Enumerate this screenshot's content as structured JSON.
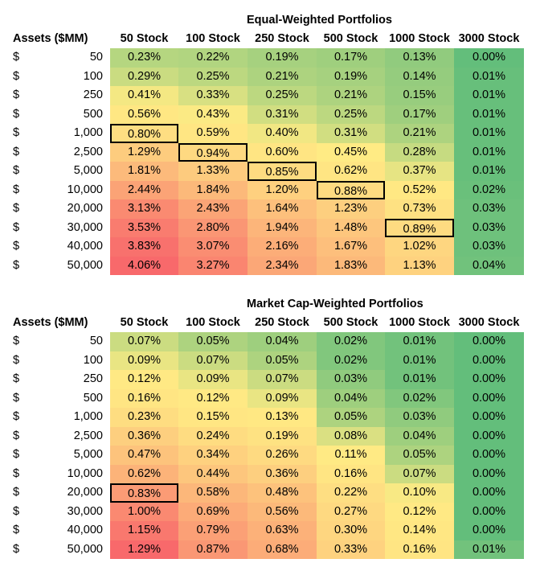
{
  "columns": [
    "50 Stock",
    "100 Stock",
    "250 Stock",
    "500 Stock",
    "1000 Stock",
    "3000 Stock"
  ],
  "assets_header": "Assets ($MM)",
  "currency_symbol": "$",
  "tables": [
    {
      "title": "Equal-Weighted Portfolios",
      "rows": [
        {
          "assets": "50",
          "values": [
            "0.23%",
            "0.22%",
            "0.19%",
            "0.17%",
            "0.13%",
            "0.00%"
          ]
        },
        {
          "assets": "100",
          "values": [
            "0.29%",
            "0.25%",
            "0.21%",
            "0.19%",
            "0.14%",
            "0.01%"
          ]
        },
        {
          "assets": "250",
          "values": [
            "0.41%",
            "0.33%",
            "0.25%",
            "0.21%",
            "0.15%",
            "0.01%"
          ]
        },
        {
          "assets": "500",
          "values": [
            "0.56%",
            "0.43%",
            "0.31%",
            "0.25%",
            "0.17%",
            "0.01%"
          ]
        },
        {
          "assets": "1,000",
          "values": [
            "0.80%",
            "0.59%",
            "0.40%",
            "0.31%",
            "0.21%",
            "0.01%"
          ]
        },
        {
          "assets": "2,500",
          "values": [
            "1.29%",
            "0.94%",
            "0.60%",
            "0.45%",
            "0.28%",
            "0.01%"
          ]
        },
        {
          "assets": "5,000",
          "values": [
            "1.81%",
            "1.33%",
            "0.85%",
            "0.62%",
            "0.37%",
            "0.01%"
          ]
        },
        {
          "assets": "10,000",
          "values": [
            "2.44%",
            "1.84%",
            "1.20%",
            "0.88%",
            "0.52%",
            "0.02%"
          ]
        },
        {
          "assets": "20,000",
          "values": [
            "3.13%",
            "2.43%",
            "1.64%",
            "1.23%",
            "0.73%",
            "0.03%"
          ]
        },
        {
          "assets": "30,000",
          "values": [
            "3.53%",
            "2.80%",
            "1.94%",
            "1.48%",
            "0.89%",
            "0.03%"
          ]
        },
        {
          "assets": "40,000",
          "values": [
            "3.83%",
            "3.07%",
            "2.16%",
            "1.67%",
            "1.02%",
            "0.03%"
          ]
        },
        {
          "assets": "50,000",
          "values": [
            "4.06%",
            "3.27%",
            "2.34%",
            "1.83%",
            "1.13%",
            "0.04%"
          ]
        }
      ],
      "highlighted_cells": [
        [
          4,
          0
        ],
        [
          5,
          1
        ],
        [
          6,
          2
        ],
        [
          7,
          3
        ],
        [
          9,
          4
        ]
      ]
    },
    {
      "title": "Market Cap-Weighted Portfolios",
      "rows": [
        {
          "assets": "50",
          "values": [
            "0.07%",
            "0.05%",
            "0.04%",
            "0.02%",
            "0.01%",
            "0.00%"
          ]
        },
        {
          "assets": "100",
          "values": [
            "0.09%",
            "0.07%",
            "0.05%",
            "0.02%",
            "0.01%",
            "0.00%"
          ]
        },
        {
          "assets": "250",
          "values": [
            "0.12%",
            "0.09%",
            "0.07%",
            "0.03%",
            "0.01%",
            "0.00%"
          ]
        },
        {
          "assets": "500",
          "values": [
            "0.16%",
            "0.12%",
            "0.09%",
            "0.04%",
            "0.02%",
            "0.00%"
          ]
        },
        {
          "assets": "1,000",
          "values": [
            "0.23%",
            "0.15%",
            "0.13%",
            "0.05%",
            "0.03%",
            "0.00%"
          ]
        },
        {
          "assets": "2,500",
          "values": [
            "0.36%",
            "0.24%",
            "0.19%",
            "0.08%",
            "0.04%",
            "0.00%"
          ]
        },
        {
          "assets": "5,000",
          "values": [
            "0.47%",
            "0.34%",
            "0.26%",
            "0.11%",
            "0.05%",
            "0.00%"
          ]
        },
        {
          "assets": "10,000",
          "values": [
            "0.62%",
            "0.44%",
            "0.36%",
            "0.16%",
            "0.07%",
            "0.00%"
          ]
        },
        {
          "assets": "20,000",
          "values": [
            "0.83%",
            "0.58%",
            "0.48%",
            "0.22%",
            "0.10%",
            "0.00%"
          ]
        },
        {
          "assets": "30,000",
          "values": [
            "1.00%",
            "0.69%",
            "0.56%",
            "0.27%",
            "0.12%",
            "0.00%"
          ]
        },
        {
          "assets": "40,000",
          "values": [
            "1.15%",
            "0.79%",
            "0.63%",
            "0.30%",
            "0.14%",
            "0.00%"
          ]
        },
        {
          "assets": "50,000",
          "values": [
            "1.29%",
            "0.87%",
            "0.68%",
            "0.33%",
            "0.16%",
            "0.01%"
          ]
        }
      ],
      "highlighted_cells": [
        [
          8,
          0
        ]
      ]
    }
  ],
  "heatmap_colors": {
    "low": "#63BE7B",
    "mid": "#FFEB84",
    "high": "#F8696B"
  }
}
